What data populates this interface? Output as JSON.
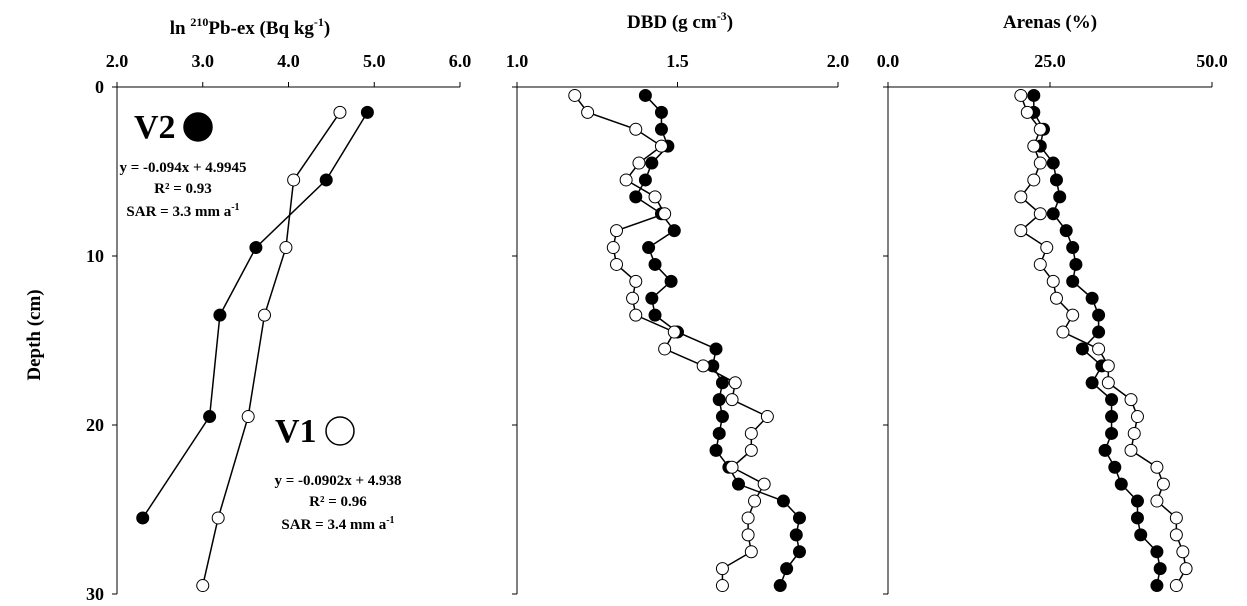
{
  "chart_data": [
    {
      "type": "scatter",
      "title": "ln ²¹⁰Pb-ex (Bq kg⁻¹)",
      "title_base": "ln ",
      "title_sup1": "210",
      "title_mid": "Pb-ex (Bq kg",
      "title_sup2": "-1",
      "title_end": ")",
      "ylabel": "Depth (cm)",
      "xlim": [
        2.0,
        6.0
      ],
      "ylim": [
        0,
        30
      ],
      "y_inverted": true,
      "x_ticks": [
        "2.0",
        "3.0",
        "4.0",
        "5.0",
        "6.0"
      ],
      "y_ticks": [
        "0",
        "10",
        "20",
        "30"
      ],
      "series": [
        {
          "name": "V2",
          "marker": "filled",
          "color": "#000000",
          "points": [
            [
              4.92,
              1.5
            ],
            [
              4.44,
              5.5
            ],
            [
              3.62,
              9.5
            ],
            [
              3.2,
              13.5
            ],
            [
              3.08,
              19.5
            ],
            [
              2.3,
              25.5
            ]
          ],
          "annotation": {
            "label": "V2",
            "equation": "y = -0.094x + 4.9945",
            "r2": "R² = 0.93",
            "sar_prefix": "SAR = 3.3 mm a",
            "sar_sup": "-1"
          }
        },
        {
          "name": "V1",
          "marker": "open",
          "color": "#000000",
          "points": [
            [
              4.6,
              1.5
            ],
            [
              4.06,
              5.5
            ],
            [
              3.97,
              9.5
            ],
            [
              3.72,
              13.5
            ],
            [
              3.53,
              19.5
            ],
            [
              3.18,
              25.5
            ],
            [
              3.0,
              29.5
            ]
          ],
          "annotation": {
            "label": "V1",
            "equation": "y = -0.0902x + 4.938",
            "r2": "R² = 0.96",
            "sar_prefix": "SAR = 3.4 mm a",
            "sar_sup": "-1"
          }
        }
      ]
    },
    {
      "type": "line",
      "title": "DBD (g cm⁻³)",
      "title_base": "DBD (g cm",
      "title_sup": "-3",
      "title_end": ")",
      "xlim": [
        1.0,
        2.0
      ],
      "ylim": [
        0,
        30
      ],
      "y_inverted": true,
      "x_ticks": [
        "1.0",
        "1.5",
        "2.0"
      ],
      "series": [
        {
          "name": "V2",
          "marker": "filled",
          "color": "#000000",
          "points": [
            [
              1.4,
              0.5
            ],
            [
              1.45,
              1.5
            ],
            [
              1.45,
              2.5
            ],
            [
              1.47,
              3.5
            ],
            [
              1.42,
              4.5
            ],
            [
              1.4,
              5.5
            ],
            [
              1.37,
              6.5
            ],
            [
              1.45,
              7.5
            ],
            [
              1.49,
              8.5
            ],
            [
              1.41,
              9.5
            ],
            [
              1.43,
              10.5
            ],
            [
              1.48,
              11.5
            ],
            [
              1.42,
              12.5
            ],
            [
              1.43,
              13.5
            ],
            [
              1.5,
              14.5
            ],
            [
              1.62,
              15.5
            ],
            [
              1.61,
              16.5
            ],
            [
              1.64,
              17.5
            ],
            [
              1.63,
              18.5
            ],
            [
              1.64,
              19.5
            ],
            [
              1.63,
              20.5
            ],
            [
              1.62,
              21.5
            ],
            [
              1.66,
              22.5
            ],
            [
              1.69,
              23.5
            ],
            [
              1.83,
              24.5
            ],
            [
              1.88,
              25.5
            ],
            [
              1.87,
              26.5
            ],
            [
              1.88,
              27.5
            ],
            [
              1.84,
              28.5
            ],
            [
              1.82,
              29.5
            ]
          ]
        },
        {
          "name": "V1",
          "marker": "open",
          "color": "#000000",
          "points": [
            [
              1.18,
              0.5
            ],
            [
              1.22,
              1.5
            ],
            [
              1.37,
              2.5
            ],
            [
              1.45,
              3.5
            ],
            [
              1.38,
              4.5
            ],
            [
              1.34,
              5.5
            ],
            [
              1.43,
              6.5
            ],
            [
              1.46,
              7.5
            ],
            [
              1.31,
              8.5
            ],
            [
              1.3,
              9.5
            ],
            [
              1.31,
              10.5
            ],
            [
              1.37,
              11.5
            ],
            [
              1.36,
              12.5
            ],
            [
              1.37,
              13.5
            ],
            [
              1.49,
              14.5
            ],
            [
              1.46,
              15.5
            ],
            [
              1.58,
              16.5
            ],
            [
              1.68,
              17.5
            ],
            [
              1.67,
              18.5
            ],
            [
              1.78,
              19.5
            ],
            [
              1.73,
              20.5
            ],
            [
              1.73,
              21.5
            ],
            [
              1.67,
              22.5
            ],
            [
              1.77,
              23.5
            ],
            [
              1.74,
              24.5
            ],
            [
              1.72,
              25.5
            ],
            [
              1.72,
              26.5
            ],
            [
              1.73,
              27.5
            ],
            [
              1.64,
              28.5
            ],
            [
              1.64,
              29.5
            ]
          ]
        }
      ]
    },
    {
      "type": "line",
      "title": "Arenas (%)",
      "xlim": [
        0.0,
        50.0
      ],
      "ylim": [
        0,
        30
      ],
      "y_inverted": true,
      "x_ticks": [
        "0.0",
        "25.0",
        "50.0"
      ],
      "series": [
        {
          "name": "V2",
          "marker": "filled",
          "color": "#000000",
          "points": [
            [
              22.5,
              0.5
            ],
            [
              22.5,
              1.5
            ],
            [
              24.0,
              2.5
            ],
            [
              23.5,
              3.5
            ],
            [
              25.5,
              4.5
            ],
            [
              26.0,
              5.5
            ],
            [
              26.5,
              6.5
            ],
            [
              25.5,
              7.5
            ],
            [
              27.5,
              8.5
            ],
            [
              28.5,
              9.5
            ],
            [
              29.0,
              10.5
            ],
            [
              28.5,
              11.5
            ],
            [
              31.5,
              12.5
            ],
            [
              32.5,
              13.5
            ],
            [
              32.5,
              14.5
            ],
            [
              30.0,
              15.5
            ],
            [
              33.0,
              16.5
            ],
            [
              31.5,
              17.5
            ],
            [
              34.5,
              18.5
            ],
            [
              34.5,
              19.5
            ],
            [
              34.5,
              20.5
            ],
            [
              33.5,
              21.5
            ],
            [
              35.0,
              22.5
            ],
            [
              36.0,
              23.5
            ],
            [
              38.5,
              24.5
            ],
            [
              38.5,
              25.5
            ],
            [
              39.0,
              26.5
            ],
            [
              41.5,
              27.5
            ],
            [
              42.0,
              28.5
            ],
            [
              41.5,
              29.5
            ]
          ]
        },
        {
          "name": "V1",
          "marker": "open",
          "color": "#000000",
          "points": [
            [
              20.5,
              0.5
            ],
            [
              21.5,
              1.5
            ],
            [
              23.5,
              2.5
            ],
            [
              22.5,
              3.5
            ],
            [
              23.5,
              4.5
            ],
            [
              22.5,
              5.5
            ],
            [
              20.5,
              6.5
            ],
            [
              23.5,
              7.5
            ],
            [
              20.5,
              8.5
            ],
            [
              24.5,
              9.5
            ],
            [
              23.5,
              10.5
            ],
            [
              25.5,
              11.5
            ],
            [
              26.0,
              12.5
            ],
            [
              28.5,
              13.5
            ],
            [
              27.0,
              14.5
            ],
            [
              32.5,
              15.5
            ],
            [
              34.0,
              16.5
            ],
            [
              34.0,
              17.5
            ],
            [
              37.5,
              18.5
            ],
            [
              38.5,
              19.5
            ],
            [
              38.0,
              20.5
            ],
            [
              37.5,
              21.5
            ],
            [
              41.5,
              22.5
            ],
            [
              42.5,
              23.5
            ],
            [
              41.5,
              24.5
            ],
            [
              44.5,
              25.5
            ],
            [
              44.5,
              26.5
            ],
            [
              45.5,
              27.5
            ],
            [
              46.0,
              28.5
            ],
            [
              44.5,
              29.5
            ]
          ]
        }
      ]
    }
  ]
}
